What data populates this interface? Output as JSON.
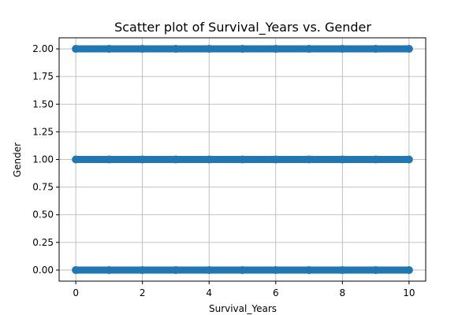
{
  "chart_data": {
    "type": "scatter",
    "title": "Scatter plot of Survival_Years vs. Gender",
    "xlabel": "Survival_Years",
    "ylabel": "Gender",
    "xlim": [
      -0.5,
      10.5
    ],
    "ylim": [
      -0.1,
      2.1
    ],
    "x_ticks": [
      0,
      2,
      4,
      6,
      8,
      10
    ],
    "x_tick_labels": [
      "0",
      "2",
      "4",
      "6",
      "8",
      "10"
    ],
    "y_ticks": [
      0.0,
      0.25,
      0.5,
      0.75,
      1.0,
      1.25,
      1.5,
      1.75,
      2.0
    ],
    "y_tick_labels": [
      "0.00",
      "0.25",
      "0.50",
      "0.75",
      "1.00",
      "1.25",
      "1.50",
      "1.75",
      "2.00"
    ],
    "grid": true,
    "marker_color": "#1f77b4",
    "series": [
      {
        "x": [
          0,
          1,
          2,
          3,
          4,
          5,
          6,
          7,
          8,
          9,
          10,
          0,
          1,
          2,
          3,
          4,
          5,
          6,
          7,
          8,
          9,
          10,
          0,
          1,
          2,
          3,
          4,
          5,
          6,
          7,
          8,
          9,
          10
        ],
        "y": [
          0,
          0,
          0,
          0,
          0,
          0,
          0,
          0,
          0,
          0,
          0,
          1,
          1,
          1,
          1,
          1,
          1,
          1,
          1,
          1,
          1,
          1,
          2,
          2,
          2,
          2,
          2,
          2,
          2,
          2,
          2,
          2,
          2
        ]
      }
    ]
  }
}
